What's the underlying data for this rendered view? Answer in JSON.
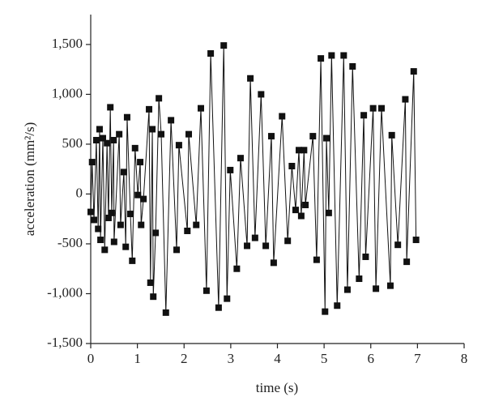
{
  "chart_data": {
    "type": "line",
    "x_label": "time (s)",
    "y_label": "acceleration (mm²/s)",
    "xlim": [
      0,
      8
    ],
    "xticks": [
      0,
      1,
      2,
      3,
      4,
      5,
      6,
      7,
      8
    ],
    "ylim": [
      -1500,
      1800
    ],
    "yticks": [
      {
        "value": -1500,
        "label": "-1,500"
      },
      {
        "value": -1000,
        "label": "-1,000"
      },
      -500,
      0,
      500,
      {
        "value": 1000,
        "label": "1,000"
      },
      {
        "value": 1500,
        "label": "1,500"
      }
    ],
    "grid": false,
    "series": [
      {
        "color": "#111111",
        "x": [
          0,
          0.03,
          0.07,
          0.12,
          0.16,
          0.19,
          0.21,
          0.26,
          0.3,
          0.35,
          0.38,
          0.42,
          0.45,
          0.49,
          0.5,
          0.61,
          0.64,
          0.71,
          0.75,
          0.78,
          0.85,
          0.89,
          0.95,
          1.01,
          1.06,
          1.08,
          1.13,
          1.25,
          1.28,
          1.32,
          1.34,
          1.39,
          1.46,
          1.51,
          1.61,
          1.72,
          1.84,
          1.89,
          2.07,
          2.1,
          2.26,
          2.36,
          2.48,
          2.57,
          2.74,
          2.85,
          2.92,
          2.99,
          3.13,
          3.21,
          3.35,
          3.42,
          3.52,
          3.65,
          3.75,
          3.87,
          3.92,
          4.1,
          4.22,
          4.31,
          4.39,
          4.46,
          4.51,
          4.57,
          4.6,
          4.76,
          4.84,
          4.93,
          5.02,
          5.05,
          5.1,
          5.16,
          5.28,
          5.42,
          5.5,
          5.61,
          5.75,
          5.85,
          5.89,
          6.05,
          6.11,
          6.23,
          6.42,
          6.45,
          6.58,
          6.74,
          6.77,
          6.92,
          6.97
        ],
        "values": [
          -180,
          320,
          -260,
          540,
          -350,
          650,
          -460,
          560,
          -560,
          510,
          -240,
          870,
          -190,
          540,
          -480,
          600,
          -310,
          220,
          -530,
          770,
          -200,
          -670,
          460,
          -10,
          320,
          -310,
          -50,
          850,
          -890,
          650,
          -1030,
          -390,
          960,
          600,
          -1190,
          740,
          -560,
          490,
          -370,
          600,
          -310,
          860,
          -970,
          1410,
          -1140,
          1490,
          -1050,
          240,
          -750,
          360,
          -520,
          1160,
          -440,
          1000,
          -520,
          580,
          -690,
          780,
          -470,
          280,
          -160,
          440,
          -220,
          440,
          -110,
          580,
          -660,
          1360,
          -1180,
          560,
          -190,
          1390,
          -1120,
          1390,
          -960,
          1280,
          -850,
          790,
          -630,
          860,
          -950,
          860,
          -920,
          590,
          -510,
          950,
          -680,
          1230,
          -460
        ]
      }
    ]
  }
}
